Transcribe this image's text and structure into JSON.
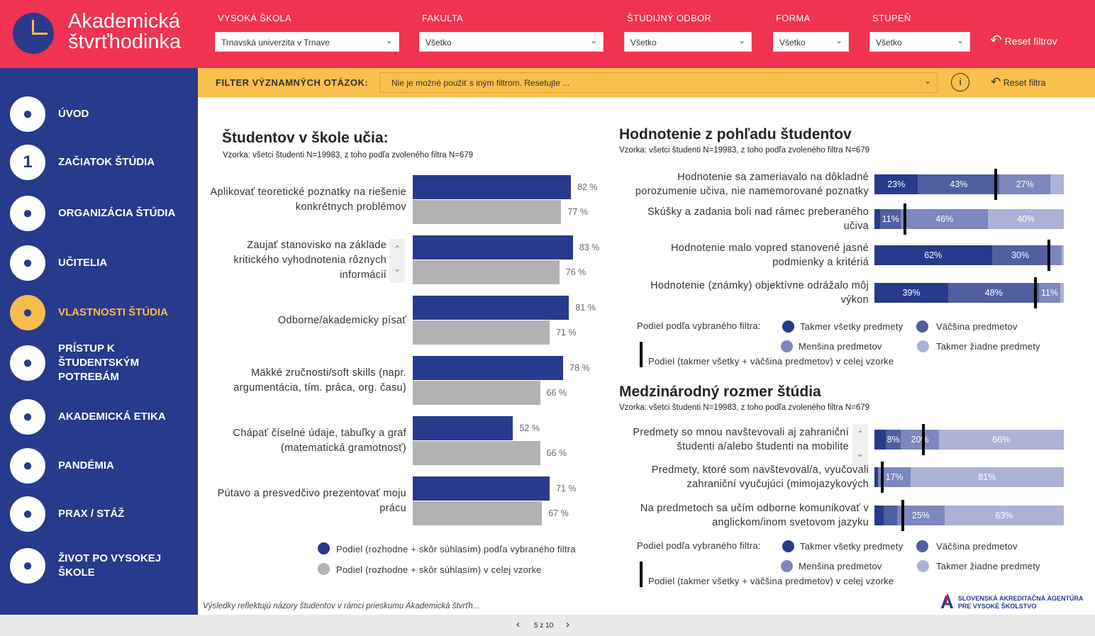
{
  "header": {
    "logo_line1": "Akademická",
    "logo_line2": "štvrťhodinka",
    "filters": [
      {
        "label": "VYSOKÁ ŠKOLA",
        "value": "Trnavská univerzita v Trnave"
      },
      {
        "label": "FAKULTA",
        "value": "Všetko"
      },
      {
        "label": "ŠTUDIJNÝ ODBOR",
        "value": "Všetko"
      },
      {
        "label": "FORMA",
        "value": "Všetko"
      },
      {
        "label": "STUPEŇ",
        "value": "Všetko"
      }
    ],
    "reset_label": "Reset filtrov"
  },
  "filter_bar": {
    "label": "FILTER VÝZNAMNÝCH OTÁZOK:",
    "value": "Nie je možné použiť s iným filtrom. Resetujte ...",
    "reset_label": "Reset filtra"
  },
  "sidebar": {
    "items": [
      {
        "label": "ÚVOD",
        "icon": "home-icon"
      },
      {
        "label": "ZAČIATOK ŠTÚDIA",
        "icon": "number-one-icon",
        "glyph": "1"
      },
      {
        "label": "ORGANIZÁCIA ŠTÚDIA",
        "icon": "network-icon"
      },
      {
        "label": "UČITELIA",
        "icon": "lectern-icon"
      },
      {
        "label": "VLASTNOSTI ŠTÚDIA",
        "icon": "books-icon",
        "active": true
      },
      {
        "label": "PRÍSTUP K ŠTUDENTSKÝM POTREBÁM",
        "icon": "support-icon"
      },
      {
        "label": "AKADEMICKÁ ETIKA",
        "icon": "ethics-icon"
      },
      {
        "label": "PANDÉMIA",
        "icon": "virus-icon"
      },
      {
        "label": "PRAX / STÁŽ",
        "icon": "worker-icon"
      },
      {
        "label": "ŽIVOT PO VYSOKEJ ŠKOLE",
        "icon": "graduate-icon"
      }
    ]
  },
  "colors": {
    "dark": "#283a8c",
    "majority": "#4f5fa0",
    "minority": "#7c87bd",
    "none": "#abb2d6",
    "gray": "#b2b2b2"
  },
  "chart_data": [
    {
      "type": "bar",
      "title": "Študentov v škole učia:",
      "subtitle": "Vzorka: všetci študenti N=19983, z toho podľa zvoleného filtra N=679",
      "categories": [
        "Aplikovať teoretické poznatky na riešenie konkrétnych problémov",
        "Zaujať stanovisko na základe kritického vyhodnotenia rôznych informácií",
        "Odborne/akademicky písať",
        "Mäkké zručnosti/soft skills (napr. argumentácia, tím. práca, org. času)",
        "Chápať číselné údaje, tabuľky a graf (matematická gramotnosť)",
        "Pútavo a presvedčivo prezentovať moju prácu"
      ],
      "series": [
        {
          "name": "Podiel (rozhodne + skôr súhlasím) podľa vybraného filtra",
          "values": [
            82,
            83,
            81,
            78,
            52,
            71
          ]
        },
        {
          "name": "Podiel (rozhodne + skôr súhlasím) v celej vzorke",
          "values": [
            77,
            76,
            71,
            66,
            66,
            67
          ]
        }
      ],
      "value_labels": [
        [
          "82 %",
          "83 %",
          "81 %",
          "78 %",
          "52 %",
          "71 %"
        ],
        [
          "77 %",
          "76 %",
          "71 %",
          "66 %",
          "66 %",
          "67 %"
        ]
      ],
      "xlim": [
        0,
        100
      ],
      "footnote": "Výsledky reflektujú názory študentov v rámci prieskumu Akademická štvrťh..."
    },
    {
      "type": "bar",
      "stacked": true,
      "title": "Hodnotenie z pohľadu študentov",
      "subtitle": "Vzorka: všetci študenti N=19983, z toho podľa zvoleného filtra N=679",
      "categories": [
        "Hodnotenie sa zameriavalo na dôkladné porozumenie učiva, nie namemorované poznatky",
        "Skúšky a zadania boli nad rámec preberaného učiva",
        "Hodnotenie malo vopred stanovené jasné podmienky a kritériá",
        "Hodnotenie (známky) objektívne odrážalo môj výkon"
      ],
      "series": [
        {
          "name": "Takmer všetky predmety",
          "values": [
            23,
            3,
            62,
            39
          ],
          "labels": [
            "23%",
            "",
            "62%",
            "39%"
          ]
        },
        {
          "name": "Väčšina predmetov",
          "values": [
            43,
            11,
            30,
            48
          ],
          "labels": [
            "43%",
            "11%",
            "30%",
            "48%"
          ]
        },
        {
          "name": "Menšina predmetov",
          "values": [
            27,
            46,
            7,
            11
          ],
          "labels": [
            "27%",
            "46%",
            "",
            "11%"
          ]
        },
        {
          "name": "Takmer žiadne predmety",
          "values": [
            7,
            40,
            1,
            2
          ],
          "labels": [
            "",
            "40%",
            "",
            ""
          ]
        }
      ],
      "total_marker": {
        "name": "Podiel (takmer všetky + väčšina predmetov) v celej vzorke",
        "values": [
          64,
          16,
          92,
          85
        ]
      },
      "legend_prefix": "Podiel podľa vybraného filtra:",
      "xlim": [
        0,
        100
      ]
    },
    {
      "type": "bar",
      "stacked": true,
      "title": "Medzinárodný rozmer štúdia",
      "subtitle": "Vzorka: všetci študenti N=19983, z toho podľa zvoleného filtra N=679",
      "categories": [
        "Predmety so mnou navštevovali aj zahraniční študenti a/alebo študenti na mobilite",
        "Predmety, ktoré som navštevoval/a, vyučovali zahraniční vyučujúci (mimojazykových",
        "Na predmetoch sa učím odborne komunikovať v anglickom/inom svetovom jazyku"
      ],
      "series": [
        {
          "name": "Takmer všetky predmety",
          "values": [
            6,
            2,
            5
          ],
          "labels": [
            "",
            "",
            ""
          ]
        },
        {
          "name": "Väčšina predmetov",
          "values": [
            8,
            0,
            7
          ],
          "labels": [
            "8%",
            "",
            ""
          ]
        },
        {
          "name": "Menšina predmetov",
          "values": [
            20,
            17,
            25
          ],
          "labels": [
            "20%",
            "17%",
            "25%"
          ]
        },
        {
          "name": "Takmer žiadne predmety",
          "values": [
            66,
            81,
            63
          ],
          "labels": [
            "66%",
            "81%",
            "63%"
          ]
        }
      ],
      "total_marker": {
        "name": "Podiel (takmer všetky + väčšina predmetov) v celej vzorke",
        "values": [
          26,
          4,
          15
        ]
      },
      "legend_prefix": "Podiel podľa vybraného filtra:",
      "xlim": [
        0,
        100
      ]
    }
  ],
  "agency": {
    "line1": "SLOVENSKÁ AKREDITAČNÁ AGENTÚRA",
    "line2": "PRE VYSOKÉ ŠKOLSTVO"
  },
  "pager": {
    "label": "5 z 10"
  }
}
